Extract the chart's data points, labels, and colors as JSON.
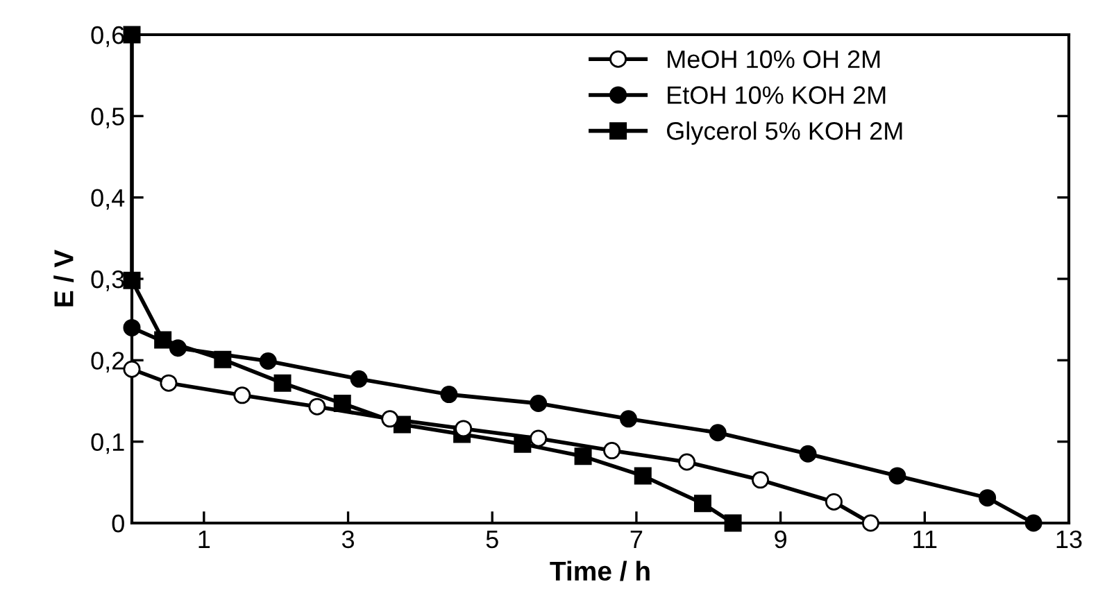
{
  "chart_data": {
    "type": "line",
    "xlabel": "Time / h",
    "ylabel": "E / V",
    "xlim": [
      0,
      13
    ],
    "xticks": [
      1,
      3,
      5,
      7,
      9,
      11,
      13
    ],
    "ylim": [
      0,
      0.6
    ],
    "yticks": [
      {
        "value": 0,
        "label": "0"
      },
      {
        "value": 0.1,
        "label": "0,1"
      },
      {
        "value": 0.2,
        "label": "0,2"
      },
      {
        "value": 0.3,
        "label": "0,3"
      },
      {
        "value": 0.4,
        "label": "0,4"
      },
      {
        "value": 0.5,
        "label": "0,5"
      },
      {
        "value": 0.6,
        "label": "0,6"
      }
    ],
    "grid": false,
    "legend": "top right",
    "line_style": "solid",
    "series": [
      {
        "name": "MeOH 10% OH 2M",
        "color": "#000000",
        "marker": "circle",
        "x": [
          0,
          0.51,
          1.53,
          2.57,
          3.58,
          4.6,
          5.64,
          6.66,
          7.7,
          8.72,
          9.74,
          10.25
        ],
        "values": [
          0.189,
          0.172,
          0.157,
          0.143,
          0.128,
          0.116,
          0.104,
          0.089,
          0.075,
          0.053,
          0.026,
          0
        ]
      },
      {
        "name": "EtOH 10% KOH 2M",
        "color": "#000000",
        "marker": "circle",
        "x": [
          0,
          0.64,
          1.89,
          3.15,
          4.4,
          5.64,
          6.89,
          8.13,
          9.38,
          10.62,
          11.87,
          12.51
        ],
        "values": [
          0.24,
          0.215,
          0.199,
          0.177,
          0.158,
          0.147,
          0.128,
          0.111,
          0.085,
          0.058,
          0.031,
          0
        ]
      },
      {
        "name": "Glycerol 5% KOH 2M",
        "color": "#000000",
        "marker": "square",
        "x": [
          0,
          0,
          0.43,
          1.26,
          2.09,
          2.92,
          3.75,
          4.58,
          5.42,
          6.26,
          7.09,
          7.92,
          8.34
        ],
        "values": [
          0.6,
          0.298,
          0.225,
          0.201,
          0.172,
          0.147,
          0.121,
          0.109,
          0.097,
          0.082,
          0.058,
          0.024,
          0
        ]
      }
    ]
  }
}
